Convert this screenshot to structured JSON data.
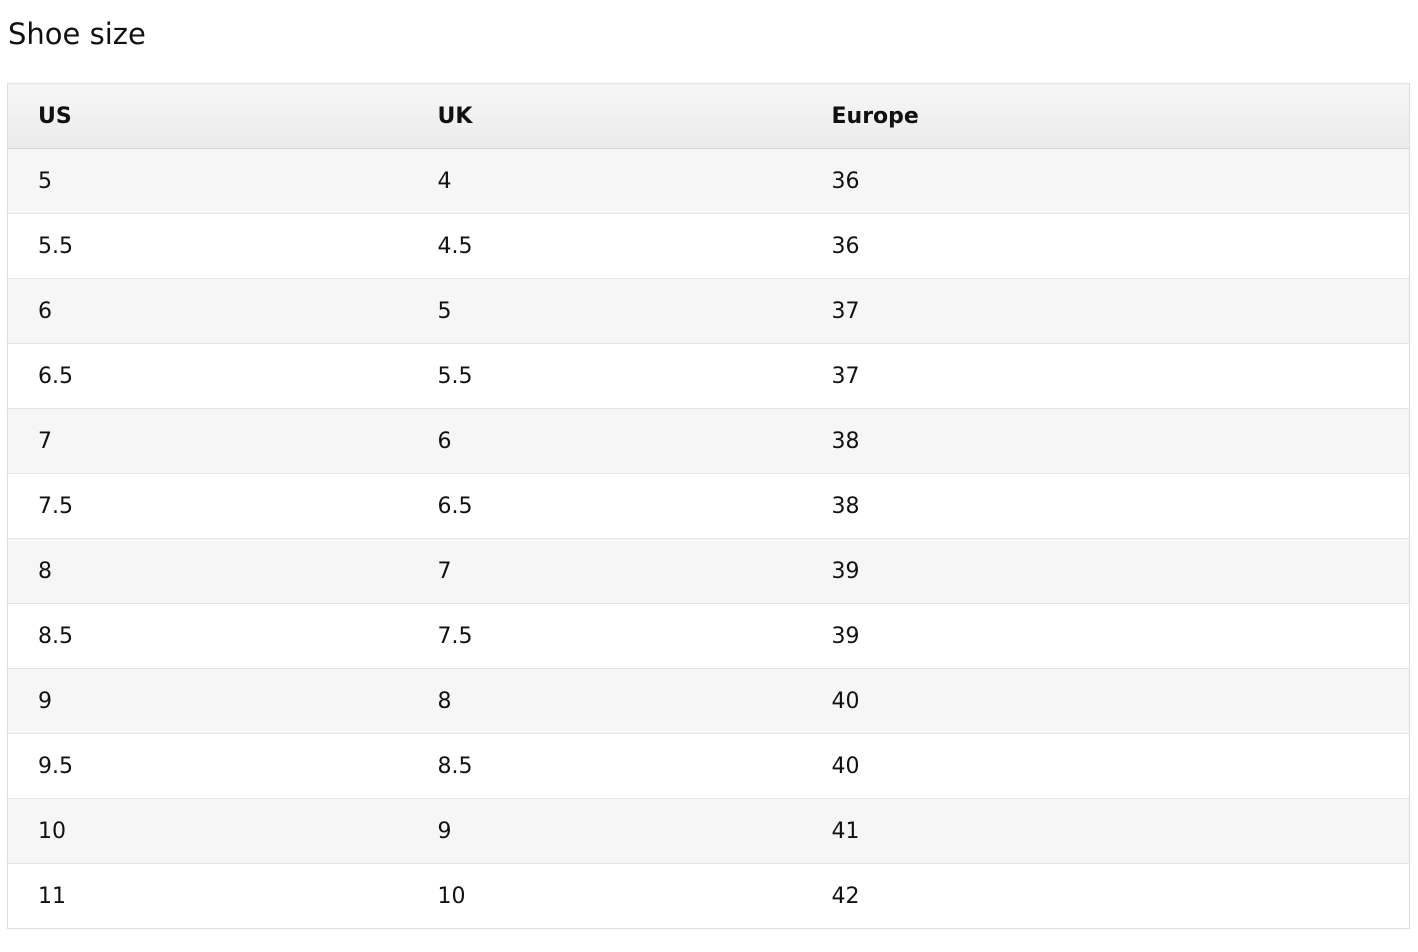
{
  "header": {
    "title": "Shoe size"
  },
  "table": {
    "columns": [
      "US",
      "UK",
      "Europe"
    ],
    "rows": [
      [
        "5",
        "4",
        "36"
      ],
      [
        "5.5",
        "4.5",
        "36"
      ],
      [
        "6",
        "5",
        "37"
      ],
      [
        "6.5",
        "5.5",
        "37"
      ],
      [
        "7",
        "6",
        "38"
      ],
      [
        "7.5",
        "6.5",
        "38"
      ],
      [
        "8",
        "7",
        "39"
      ],
      [
        "8.5",
        "7.5",
        "39"
      ],
      [
        "9",
        "8",
        "40"
      ],
      [
        "9.5",
        "8.5",
        "40"
      ],
      [
        "10",
        "9",
        "41"
      ],
      [
        "11",
        "10",
        "42"
      ]
    ]
  }
}
